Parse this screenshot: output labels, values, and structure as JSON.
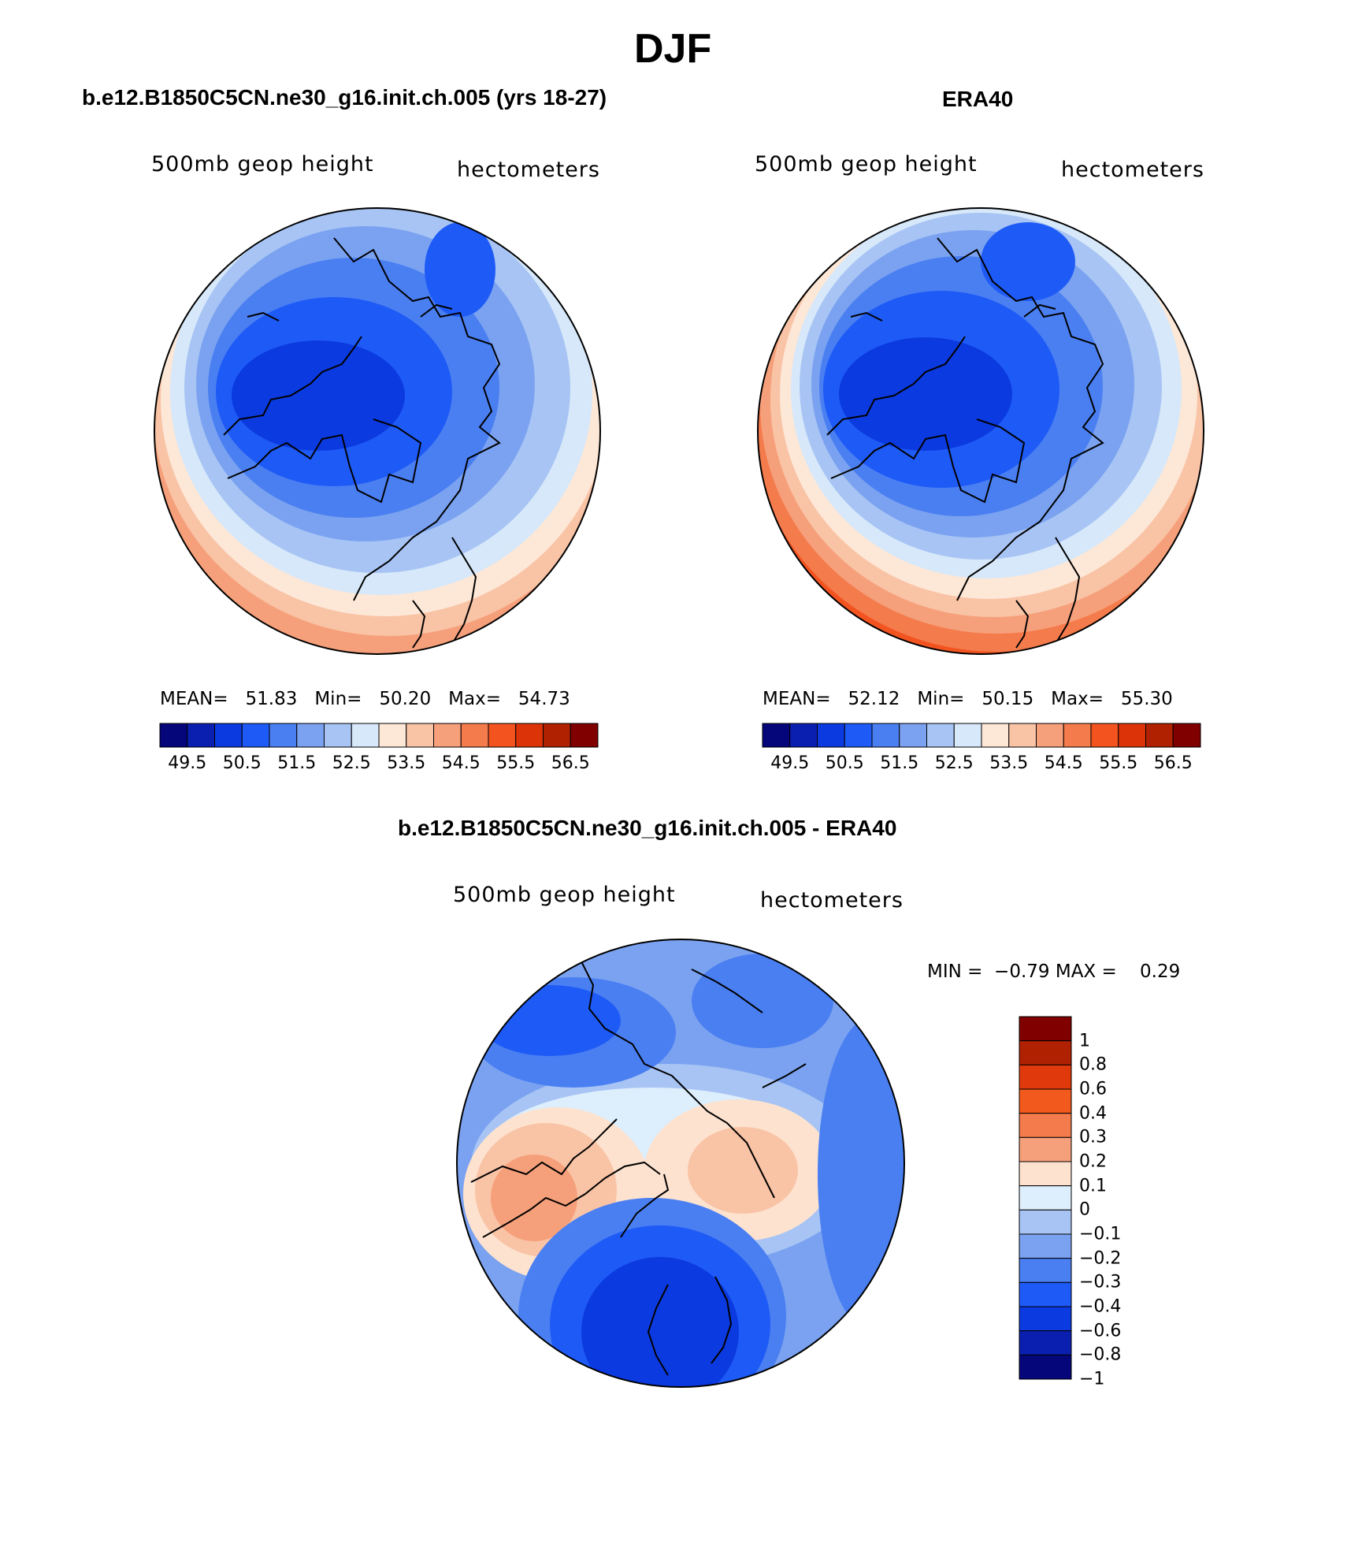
{
  "figure": {
    "title": "DJF"
  },
  "palette": {
    "absolute": [
      "#04067a",
      "#0a1fb0",
      "#0b3ae0",
      "#1e5af6",
      "#4a7ff2",
      "#7aa2f0",
      "#a7c4f4",
      "#d6e8f9",
      "#fde7d7",
      "#f9c3a5",
      "#f6a07b",
      "#f47b4c",
      "#f2531f",
      "#dd3308",
      "#b02102",
      "#800000"
    ],
    "difference": [
      "#800000",
      "#b02102",
      "#e03a0c",
      "#f25a1d",
      "#f47b4c",
      "#f6a07b",
      "#fde2cf",
      "#ddeefc",
      "#a7c4f4",
      "#7aa2f0",
      "#4a7ff2",
      "#1e5af6",
      "#0b3ae0",
      "#0a1fb0",
      "#04067a"
    ]
  },
  "panels": {
    "model": {
      "title": "b.e12.B1850C5CN.ne30_g16.init.ch.005 (yrs 18-27)",
      "variable": "500mb geop height",
      "units": "hectometers",
      "stats": {
        "mean_label": "MEAN=",
        "mean": "51.83",
        "min_label": "Min=",
        "min": "50.20",
        "max_label": "Max=",
        "max": "54.73"
      },
      "colorbar_ticks": [
        "49.5",
        "50.5",
        "51.5",
        "52.5",
        "53.5",
        "54.5",
        "55.5",
        "56.5"
      ]
    },
    "obs": {
      "title": "ERA40",
      "variable": "500mb geop height",
      "units": "hectometers",
      "stats": {
        "mean_label": "MEAN=",
        "mean": "52.12",
        "min_label": "Min=",
        "min": "50.15",
        "max_label": "Max=",
        "max": "55.30"
      },
      "colorbar_ticks": [
        "49.5",
        "50.5",
        "51.5",
        "52.5",
        "53.5",
        "54.5",
        "55.5",
        "56.5"
      ]
    },
    "diff": {
      "title": "b.e12.B1850C5CN.ne30_g16.init.ch.005 - ERA40",
      "variable": "500mb geop height",
      "units": "hectometers",
      "stats": {
        "min_label": "MIN =",
        "min": "−0.79",
        "max_label": "MAX =",
        "max": "0.29"
      },
      "colorbar_ticks": [
        "1",
        "0.8",
        "0.6",
        "0.4",
        "0.3",
        "0.2",
        "0.1",
        "0",
        "−0.1",
        "−0.2",
        "−0.3",
        "−0.4",
        "−0.6",
        "−0.8",
        "−1"
      ]
    }
  }
}
